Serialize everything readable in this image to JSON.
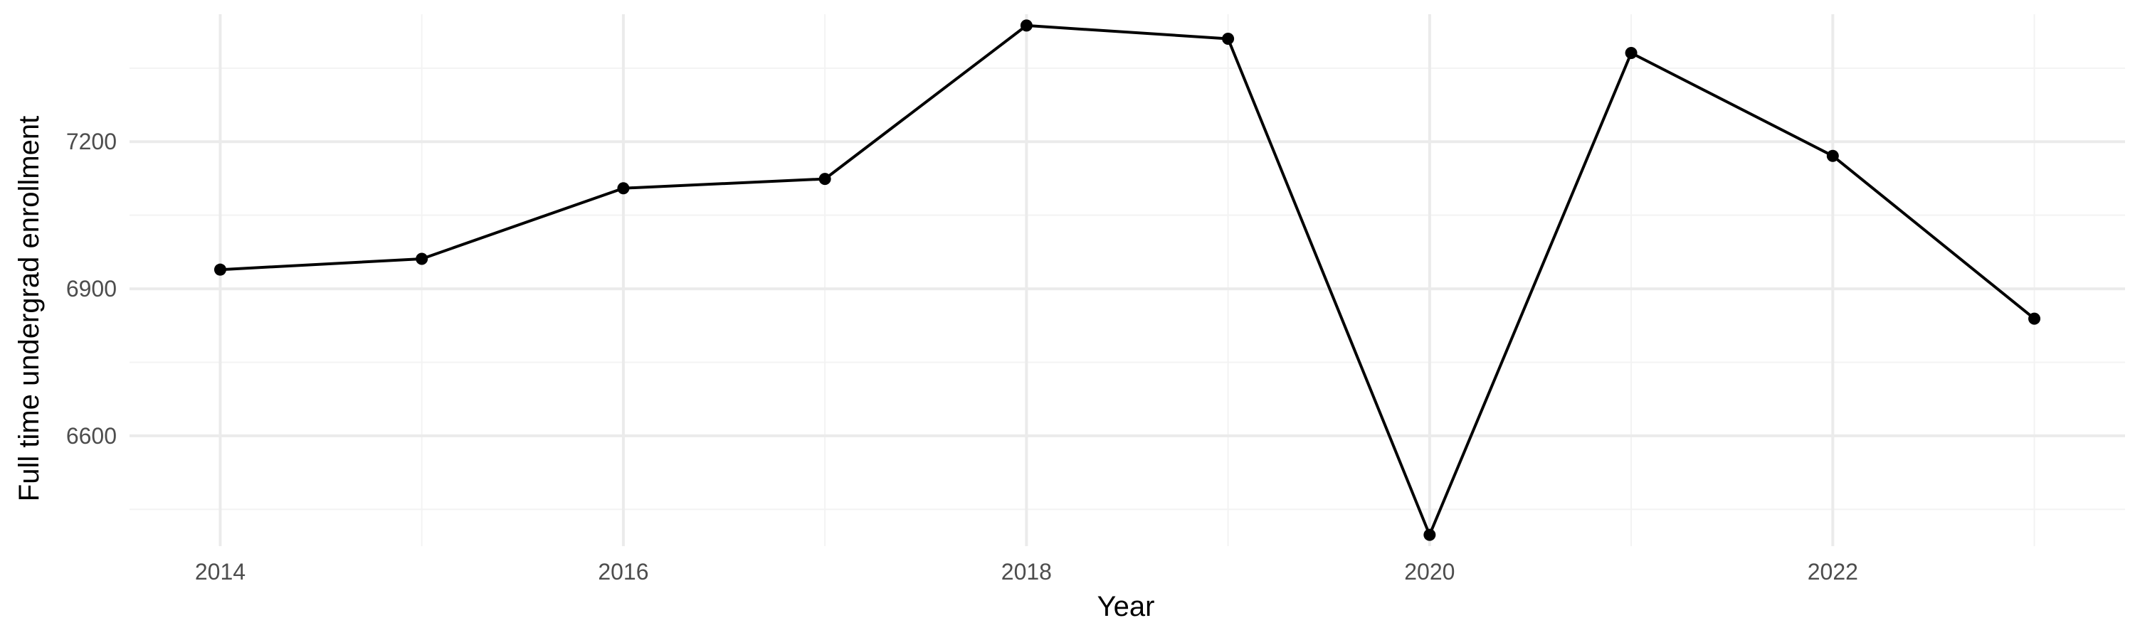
{
  "chart_data": {
    "type": "line",
    "title": "",
    "xlabel": "Year",
    "ylabel": "Full time undergrad enrollment",
    "x": [
      2014,
      2015,
      2016,
      2017,
      2018,
      2019,
      2020,
      2021,
      2022,
      2023
    ],
    "series": [
      {
        "values": [
          6939,
          6961,
          7105,
          7124,
          7437,
          7410,
          6398,
          7381,
          7171,
          6839
        ]
      }
    ],
    "xlim": [
      2013.55,
      2023.45
    ],
    "ylim": [
      6375,
      7460
    ],
    "x_ticks": [
      2014,
      2016,
      2018,
      2020,
      2022
    ],
    "x_tick_labels": [
      "2014",
      "2016",
      "2018",
      "2020",
      "2022"
    ],
    "x_minor_ticks": [
      2015,
      2017,
      2019,
      2021,
      2023
    ],
    "y_ticks": [
      6600,
      6900,
      7200
    ],
    "y_tick_labels": [
      "6600",
      "6900",
      "7200"
    ],
    "y_minor_ticks": [
      6450,
      6750,
      7050,
      7350
    ],
    "grid": true,
    "legend": "none",
    "colors": {
      "line": "#000000",
      "point": "#000000",
      "grid_major": "#ebebeb",
      "grid_minor": "#f3f3f3",
      "tick_text": "#4d4d4d",
      "axis_title": "#000000",
      "background": "#ffffff"
    }
  }
}
